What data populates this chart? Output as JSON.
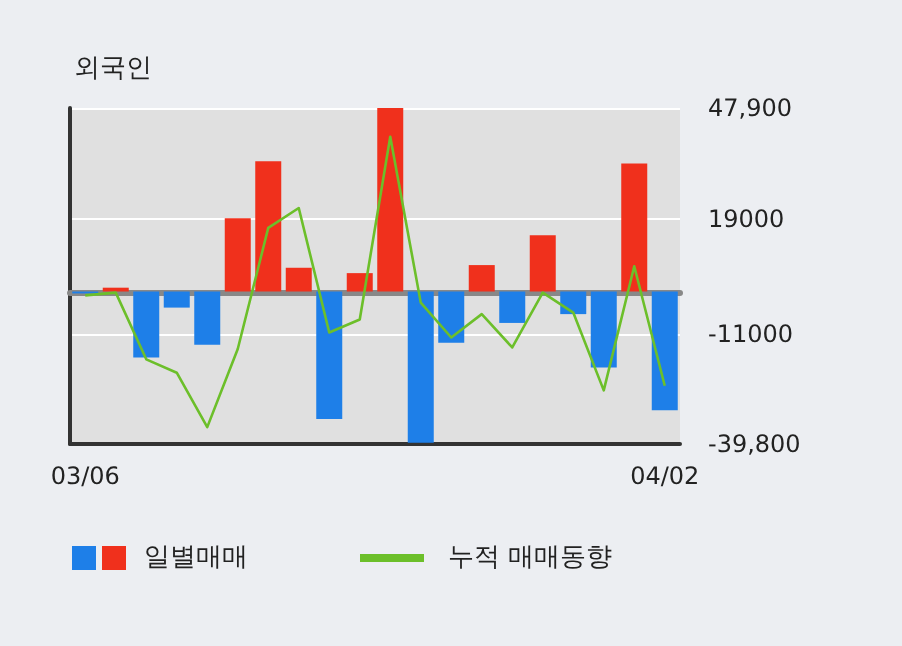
{
  "chart_data": {
    "type": "bar",
    "title": "외국인",
    "categories": [
      "03/06",
      null,
      null,
      null,
      null,
      null,
      null,
      null,
      null,
      null,
      null,
      null,
      null,
      null,
      null,
      null,
      null,
      null,
      null,
      "04/02"
    ],
    "series": [
      {
        "name": "일별매매",
        "colors": [
          "#1e7fe8",
          "#f0301c",
          "#1e7fe8",
          "#1e7fe8",
          "#1e7fe8",
          "#f0301c",
          "#f0301c",
          "#f0301c",
          "#1e7fe8",
          "#f0301c",
          "#f0301c",
          "#1e7fe8",
          "#1e7fe8",
          "#f0301c",
          "#1e7fe8",
          "#f0301c",
          "#1e7fe8",
          "#1e7fe8",
          "#f0301c",
          "#1e7fe8"
        ],
        "values": [
          -500,
          1000,
          -17200,
          -4200,
          -13900,
          19100,
          34000,
          6200,
          -33300,
          4800,
          47900,
          -39500,
          -13400,
          6900,
          -8200,
          14700,
          -5900,
          -19800,
          33400,
          -31000
        ]
      },
      {
        "name": "누적 매매동향",
        "type": "line",
        "color": "#6cbf2a",
        "values": [
          -1000,
          -300,
          -17700,
          -21200,
          -35400,
          -15000,
          16600,
          21800,
          -10700,
          -7300,
          40400,
          -2900,
          -12000,
          -5900,
          -14600,
          -300,
          -5500,
          -25800,
          6600,
          -24600
        ]
      }
    ],
    "ylim": [
      -39800,
      47900
    ],
    "yticks": [
      {
        "value": 47900,
        "label": "47,900"
      },
      {
        "value": 19000,
        "label": "19000"
      },
      {
        "value": -11000,
        "label": "-11000"
      },
      {
        "value": -39800,
        "label": "-39,800"
      }
    ],
    "grid": "y",
    "legend": "bottom left",
    "marker": "none"
  }
}
